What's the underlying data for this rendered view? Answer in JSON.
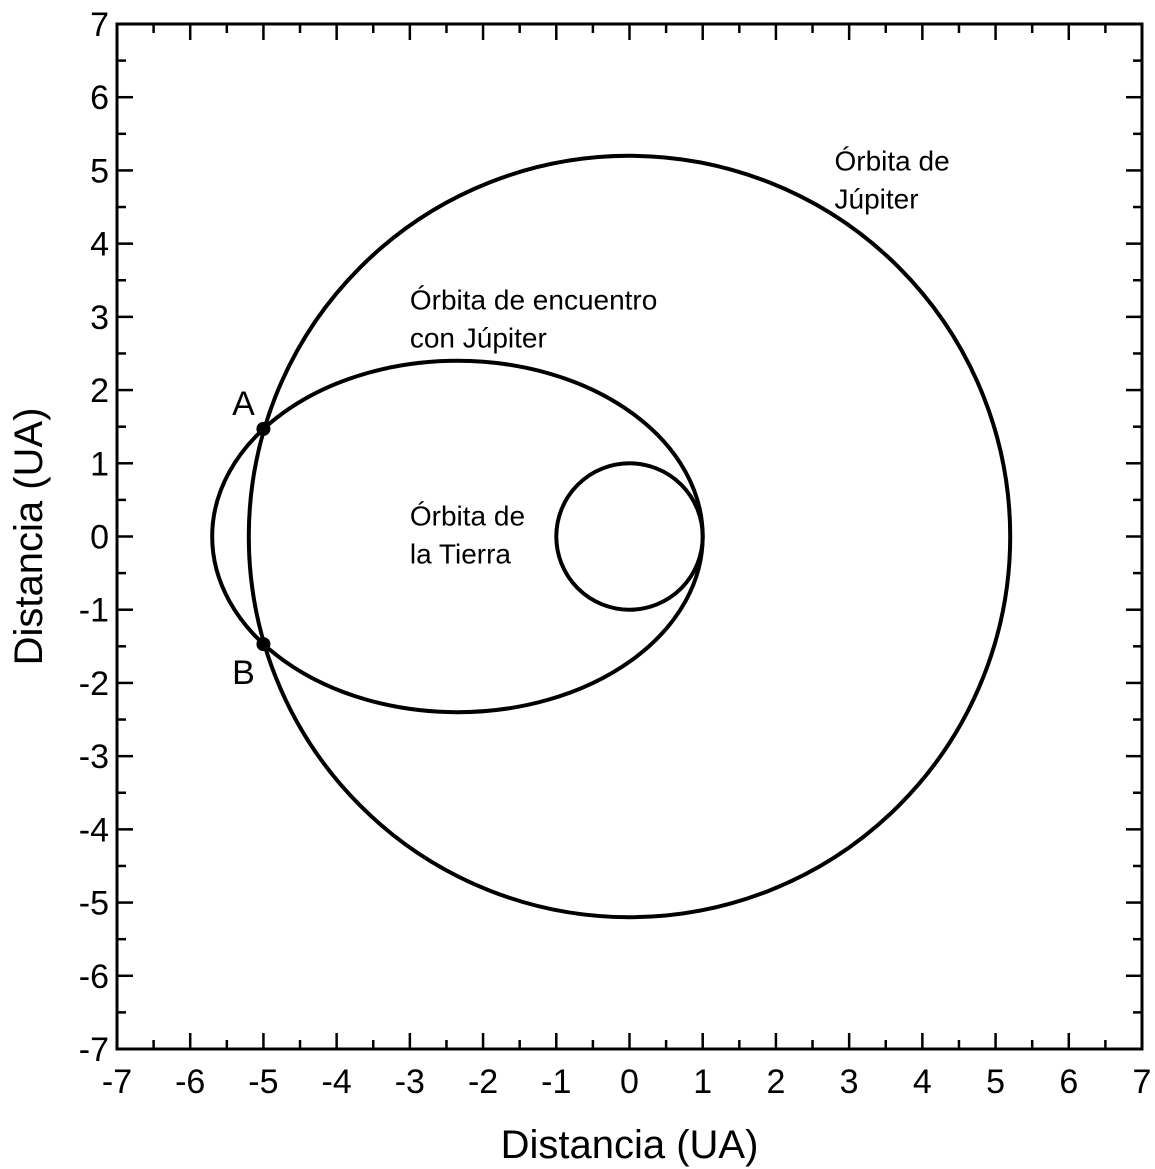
{
  "chart_data": {
    "type": "scatter",
    "xlabel": "Distancia (UA)",
    "ylabel": "Distancia (UA)",
    "xlim": [
      -7,
      7
    ],
    "ylim": [
      -7,
      7
    ],
    "x_ticks": [
      "-7",
      "-6",
      "-5",
      "-4",
      "-3",
      "-2",
      "-1",
      "0",
      "1",
      "2",
      "3",
      "4",
      "5",
      "6",
      "7"
    ],
    "y_ticks": [
      "7",
      "6",
      "5",
      "4",
      "3",
      "2",
      "1",
      "0",
      "-1",
      "-2",
      "-3",
      "-4",
      "-5",
      "-6",
      "-7"
    ],
    "x_tick_values": [
      -7,
      -6,
      -5,
      -4,
      -3,
      -2,
      -1,
      0,
      1,
      2,
      3,
      4,
      5,
      6,
      7
    ],
    "y_tick_values": [
      7,
      6,
      5,
      4,
      3,
      2,
      1,
      0,
      -1,
      -2,
      -3,
      -4,
      -5,
      -6,
      -7
    ],
    "minor_step": 0.5,
    "grid": false,
    "orbits": [
      {
        "id": "tierra",
        "cx": 0,
        "cy": 0,
        "rx": 1,
        "ry": 1
      },
      {
        "id": "jupiter",
        "cx": 0,
        "cy": 0,
        "rx": 5.2,
        "ry": 5.2
      },
      {
        "id": "encuentro",
        "cx": -2.35,
        "cy": 0,
        "rx": 3.35,
        "ry": 2.4
      }
    ],
    "points": [
      {
        "label": "A",
        "x": -5.0,
        "y": 1.47
      },
      {
        "label": "B",
        "x": -5.0,
        "y": -1.47
      }
    ],
    "annotations": [
      {
        "id": "jupiter",
        "lines": [
          "Órbita de",
          "Júpiter"
        ],
        "x": 2.8,
        "y": 5.0
      },
      {
        "id": "encuentro",
        "lines": [
          "Órbita de encuentro",
          "con Júpiter"
        ],
        "x": -3.0,
        "y": 3.1
      },
      {
        "id": "tierra",
        "lines": [
          "Órbita de",
          "la Tierra"
        ],
        "x": -3.0,
        "y": 0.15
      }
    ]
  }
}
